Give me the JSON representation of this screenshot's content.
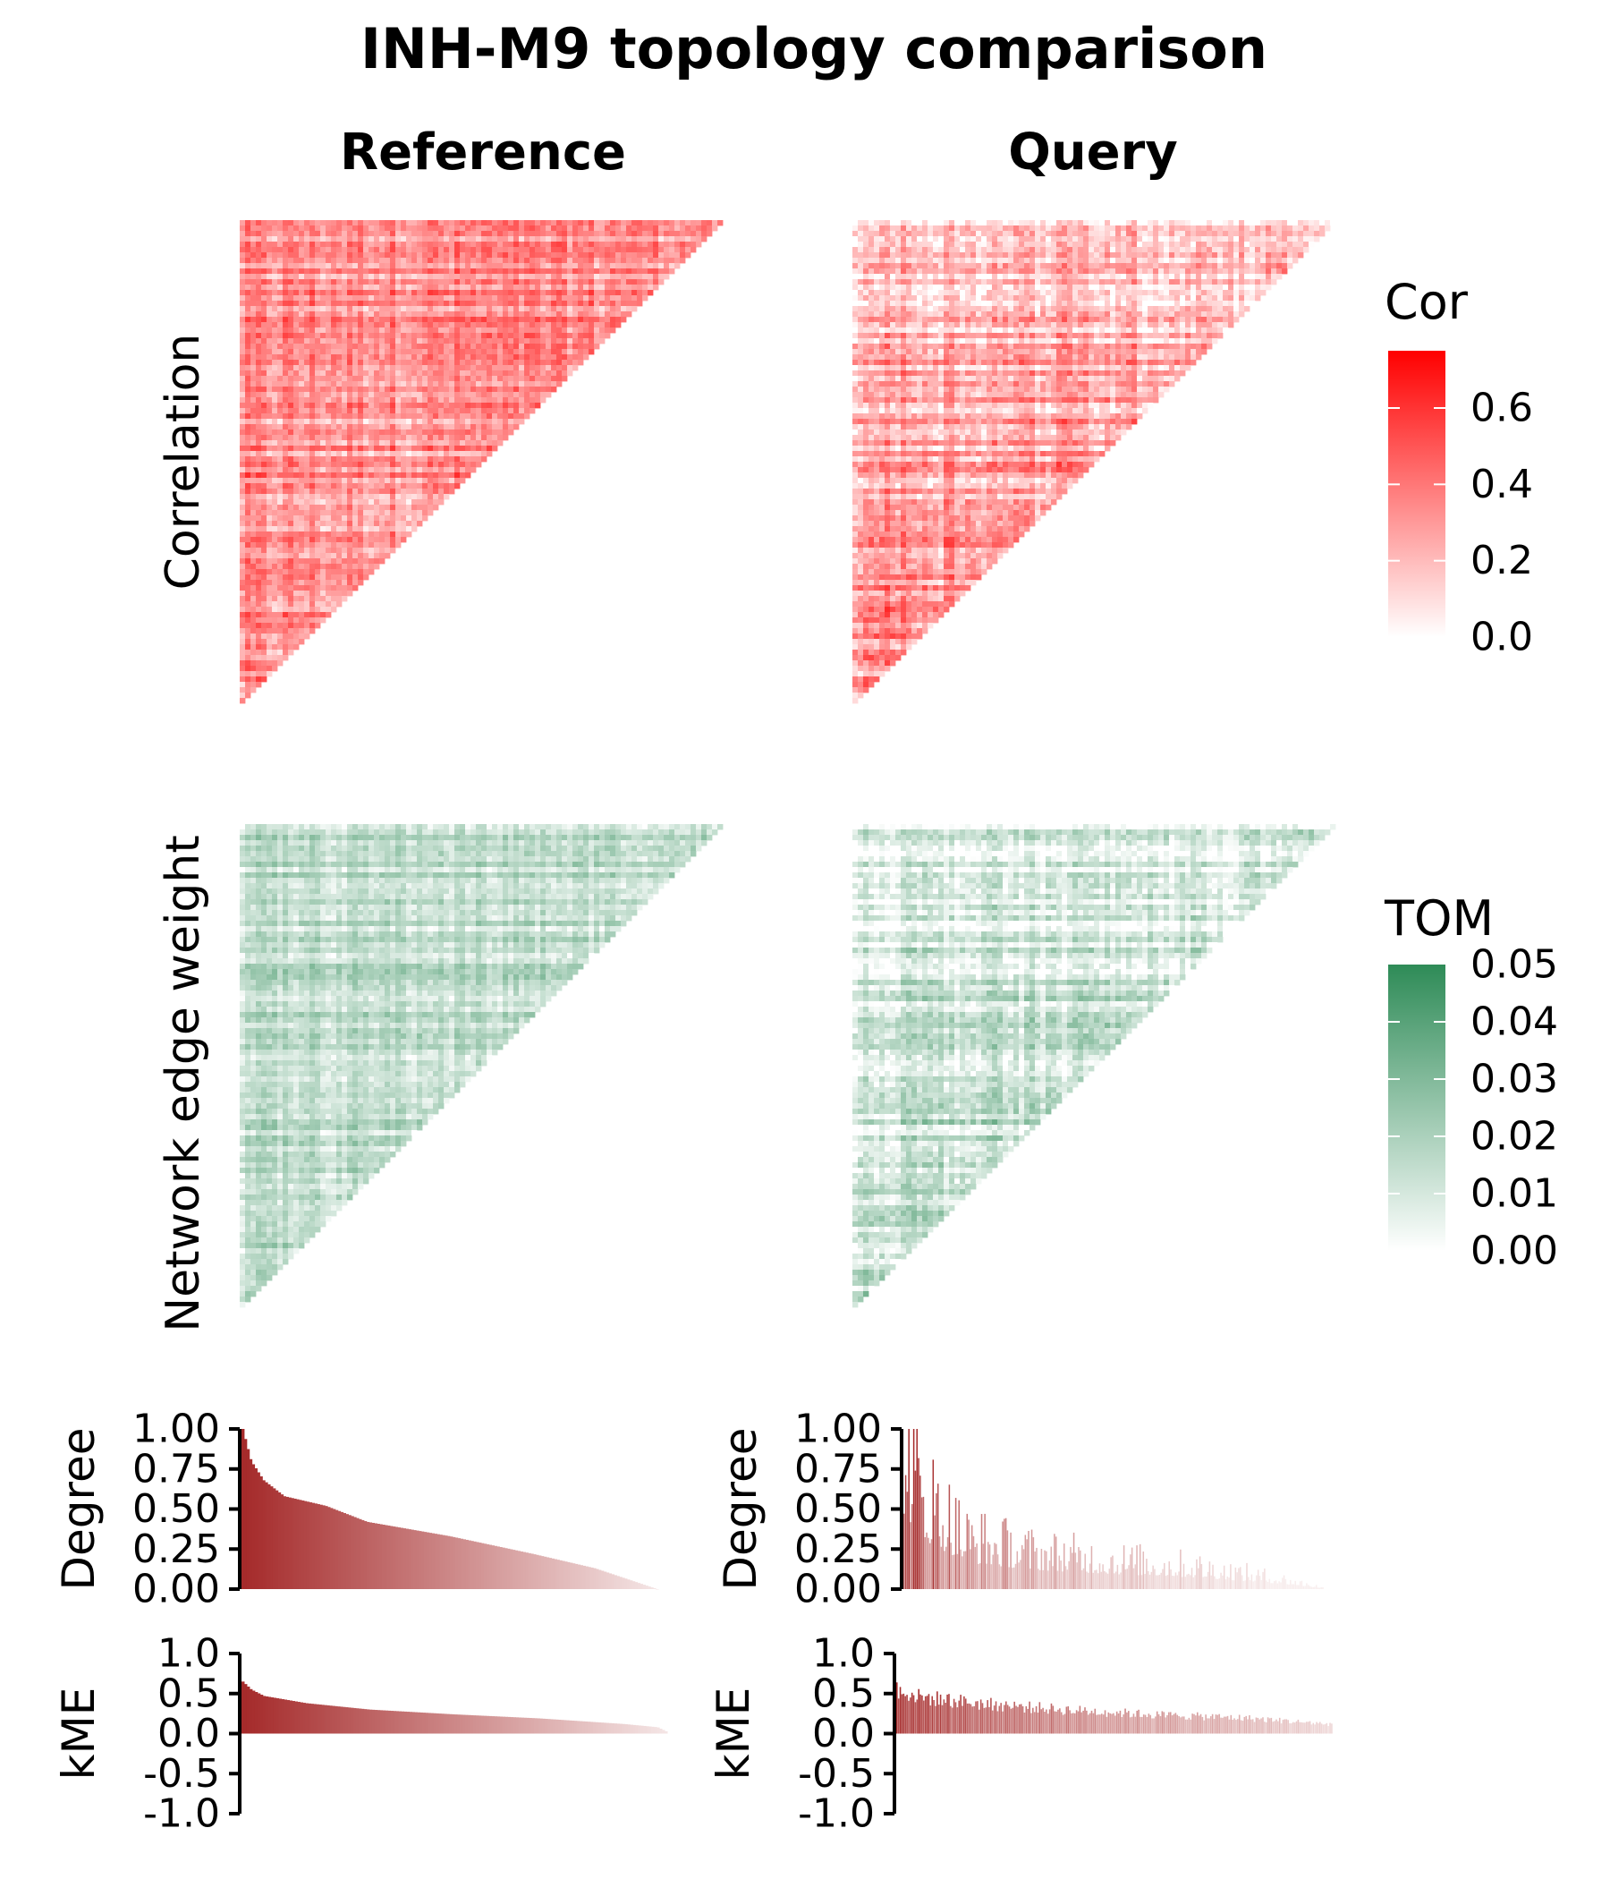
{
  "chart_data": {
    "type": "heatmap",
    "title": "INH-M9 topology comparison",
    "columns": [
      "Reference",
      "Query"
    ],
    "rows": [
      {
        "id": "correlation",
        "ylabel": "Correlation",
        "type": "heatmap",
        "shape": "lower-triangle",
        "colormap": {
          "low": "#ffffff",
          "high": "#ff0000"
        },
        "legend": {
          "title": "Cor",
          "ticks": [
            "0.0",
            "0.2",
            "0.4",
            "0.6"
          ],
          "tick_values": [
            0.0,
            0.2,
            0.4,
            0.6
          ],
          "range": [
            0.0,
            0.75
          ]
        },
        "panels": {
          "reference": {
            "mean": 0.32,
            "spread": 0.22
          },
          "query": {
            "mean": 0.28,
            "spread": 0.26
          }
        }
      },
      {
        "id": "tom",
        "ylabel": "Network edge weight",
        "type": "heatmap",
        "shape": "lower-triangle",
        "colormap": {
          "low": "#ffffff",
          "high": "#2e8b57"
        },
        "legend": {
          "title": "TOM",
          "ticks": [
            "0.00",
            "0.01",
            "0.02",
            "0.03",
            "0.04",
            "0.05"
          ],
          "tick_values": [
            0.0,
            0.01,
            0.02,
            0.03,
            0.04,
            0.05
          ],
          "range": [
            0.0,
            0.05
          ]
        },
        "panels": {
          "reference": {
            "mean": 0.014,
            "spread": 0.012
          },
          "query": {
            "mean": 0.012,
            "spread": 0.016
          }
        }
      },
      {
        "id": "degree",
        "ylabel": "Degree",
        "type": "bar",
        "ylim": [
          0,
          1
        ],
        "ticks": [
          "1.00",
          "0.75",
          "0.50",
          "0.25",
          "0.00"
        ],
        "tick_values": [
          1.0,
          0.75,
          0.5,
          0.25,
          0.0
        ],
        "bar_color": "#a52a2a",
        "reference_profile": {
          "x": [
            0,
            0.02,
            0.05,
            0.1,
            0.2,
            0.3,
            0.5,
            0.7,
            0.85,
            1.0
          ],
          "y": [
            1.0,
            0.8,
            0.68,
            0.58,
            0.52,
            0.42,
            0.33,
            0.22,
            0.13,
            0.0
          ]
        },
        "query_profile": {
          "x": [
            0,
            0.05,
            0.15,
            0.3,
            0.5,
            0.7,
            0.9,
            1.0
          ],
          "y": [
            0.85,
            0.55,
            0.3,
            0.22,
            0.17,
            0.13,
            0.06,
            0.01
          ]
        }
      },
      {
        "id": "kme",
        "ylabel": "kME",
        "type": "bar",
        "ylim": [
          -1,
          1
        ],
        "ticks": [
          "1.0",
          "0.5",
          "0.0",
          "-0.5",
          "-1.0"
        ],
        "tick_values": [
          1.0,
          0.5,
          0.0,
          -0.5,
          -1.0
        ],
        "bar_color": "#a52a2a",
        "reference_profile": {
          "x": [
            0,
            0.02,
            0.05,
            0.15,
            0.3,
            0.5,
            0.7,
            0.9,
            0.98,
            1.0
          ],
          "y": [
            0.65,
            0.55,
            0.47,
            0.38,
            0.3,
            0.24,
            0.19,
            0.12,
            0.08,
            0.03
          ]
        },
        "query_profile": {
          "x": [
            0,
            0.05,
            0.2,
            0.4,
            0.6,
            0.8,
            1.0
          ],
          "y": [
            0.58,
            0.47,
            0.38,
            0.3,
            0.24,
            0.2,
            0.12
          ]
        }
      }
    ]
  }
}
